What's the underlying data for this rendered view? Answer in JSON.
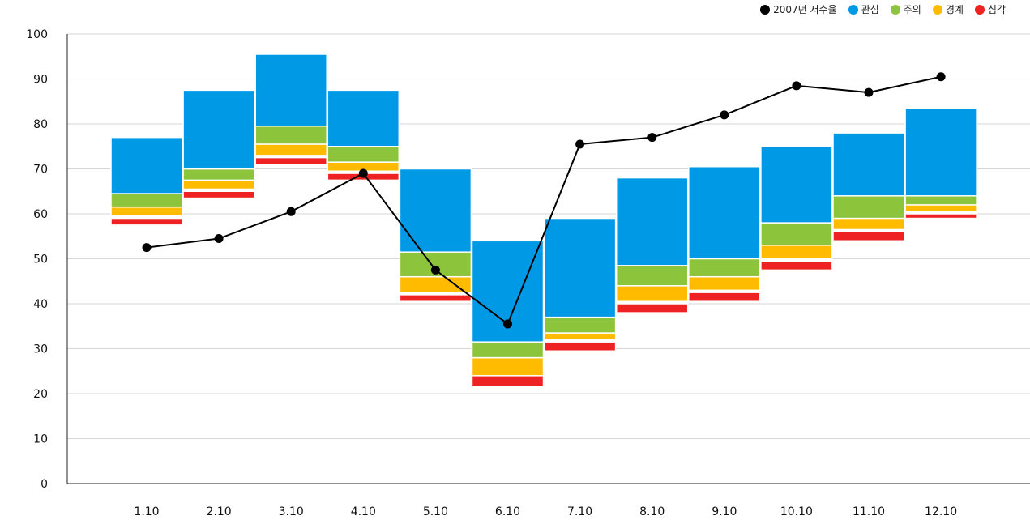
{
  "chart_data": {
    "type": "bar",
    "title": "",
    "xlabel": "",
    "ylabel": "",
    "ylim": [
      0,
      100
    ],
    "yticks": [
      0,
      10,
      20,
      30,
      40,
      50,
      60,
      70,
      80,
      90,
      100
    ],
    "grid": true,
    "legend_position": "top-right",
    "categories": [
      "1.10",
      "2.10",
      "3.10",
      "4.10",
      "5.10",
      "6.10",
      "7.10",
      "8.10",
      "9.10",
      "10.10",
      "11.10",
      "12.10"
    ],
    "band_series": [
      {
        "name": "심각",
        "color": "#ee2222",
        "low": [
          57.5,
          63.5,
          71.0,
          67.5,
          40.5,
          21.5,
          29.5,
          38.0,
          40.5,
          47.5,
          54.0,
          59.0
        ],
        "high": [
          59.0,
          65.0,
          72.5,
          69.0,
          42.0,
          24.0,
          31.5,
          40.0,
          42.5,
          49.5,
          56.0,
          60.0
        ]
      },
      {
        "name": "경계",
        "color": "#ffbb00",
        "low": [
          59.5,
          65.5,
          73.0,
          69.5,
          42.5,
          24.0,
          32.0,
          40.5,
          43.0,
          50.0,
          56.5,
          60.5
        ],
        "high": [
          61.5,
          67.5,
          75.5,
          71.5,
          46.0,
          28.0,
          33.5,
          44.0,
          46.0,
          53.5,
          59.5,
          62.0
        ]
      },
      {
        "name": "주의",
        "color": "#8cc43c",
        "low": [
          61.5,
          67.5,
          75.5,
          71.5,
          46.0,
          28.0,
          33.5,
          44.0,
          46.0,
          53.0,
          59.0,
          62.0
        ],
        "high": [
          64.5,
          70.0,
          80.0,
          75.0,
          52.0,
          32.0,
          37.0,
          48.5,
          50.5,
          58.0,
          64.0,
          64.5
        ]
      },
      {
        "name": "관심",
        "color": "#0099e6",
        "low": [
          64.5,
          70.0,
          79.5,
          75.0,
          51.5,
          31.5,
          37.0,
          48.5,
          50.0,
          58.0,
          64.0,
          64.0
        ],
        "high": [
          77.0,
          87.5,
          95.5,
          87.5,
          70.0,
          54.0,
          59.0,
          68.0,
          70.5,
          75.0,
          78.0,
          83.5
        ]
      }
    ],
    "line_series": {
      "name": "2007년 저수율",
      "color": "#000000",
      "values": [
        52.5,
        54.5,
        60.5,
        69.0,
        47.5,
        35.5,
        75.5,
        77.0,
        82.0,
        88.5,
        87.0,
        90.5
      ]
    },
    "legend": [
      {
        "label": "2007년 저수율",
        "color": "#000000"
      },
      {
        "label": "관심",
        "color": "#0099e6"
      },
      {
        "label": "주의",
        "color": "#8cc43c"
      },
      {
        "label": "경계",
        "color": "#ffbb00"
      },
      {
        "label": "심각",
        "color": "#ee2222"
      }
    ]
  }
}
